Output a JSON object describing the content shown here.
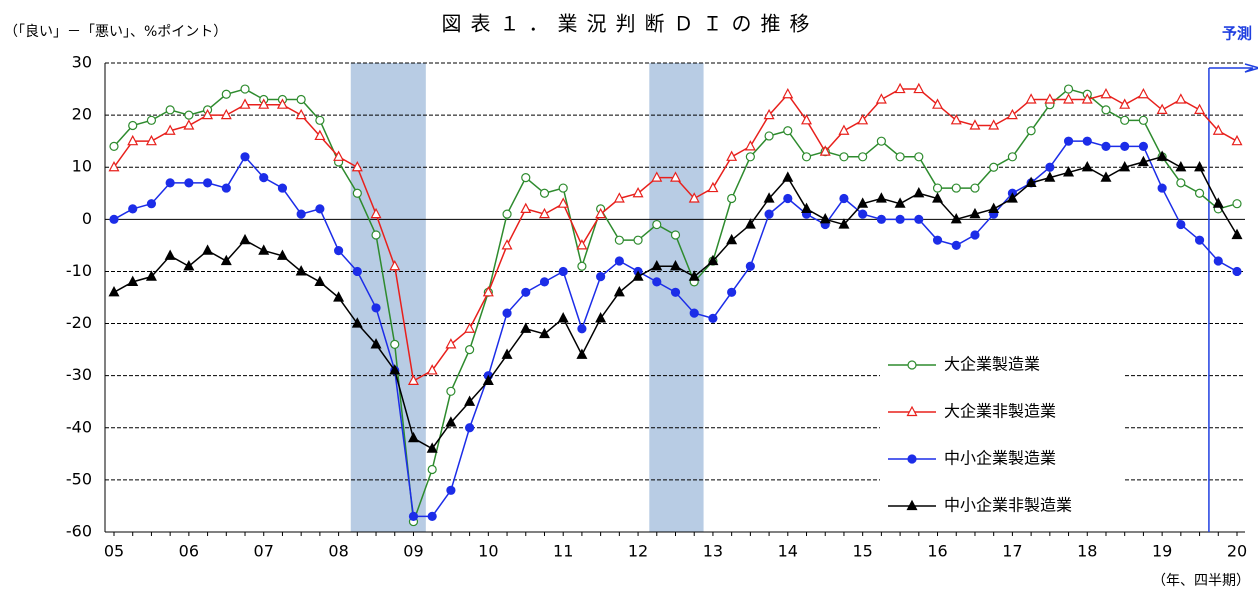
{
  "chart_data": {
    "type": "line",
    "title": "図表１．業況判断ＤＩの推移",
    "y_label": "（「良い」－「悪い」、%ポイント）",
    "x_label": "（年、四半期）",
    "categories": [
      "05",
      null,
      null,
      null,
      "06",
      null,
      null,
      null,
      "07",
      null,
      null,
      null,
      "08",
      null,
      null,
      null,
      "09",
      null,
      null,
      null,
      "10",
      null,
      null,
      null,
      "11",
      null,
      null,
      null,
      "12",
      null,
      null,
      null,
      "13",
      null,
      null,
      null,
      "14",
      null,
      null,
      null,
      "15",
      null,
      null,
      null,
      "16",
      null,
      null,
      null,
      "17",
      null,
      null,
      null,
      "18",
      null,
      null,
      null,
      "19",
      null,
      null,
      null,
      "20"
    ],
    "series": [
      {
        "name": "大企業製造業",
        "color": "#2e8b2e",
        "marker": "circle-open",
        "values": [
          14,
          18,
          19,
          21,
          20,
          21,
          24,
          25,
          23,
          23,
          23,
          19,
          11,
          5,
          -3,
          -24,
          -58,
          -48,
          -33,
          -25,
          -14,
          1,
          8,
          5,
          6,
          -9,
          2,
          -4,
          -4,
          -1,
          -3,
          -12,
          -8,
          4,
          12,
          16,
          17,
          12,
          13,
          12,
          12,
          15,
          12,
          12,
          6,
          6,
          6,
          10,
          12,
          17,
          22,
          25,
          24,
          21,
          19,
          19,
          12,
          7,
          5,
          2,
          3
        ]
      },
      {
        "name": "大企業非製造業",
        "color": "#e8201c",
        "marker": "triangle-open",
        "values": [
          10,
          15,
          15,
          17,
          18,
          20,
          20,
          22,
          22,
          22,
          20,
          16,
          12,
          10,
          1,
          -9,
          -31,
          -29,
          -24,
          -21,
          -14,
          -5,
          2,
          1,
          3,
          -5,
          1,
          4,
          5,
          8,
          8,
          4,
          6,
          12,
          14,
          20,
          24,
          19,
          13,
          17,
          19,
          23,
          25,
          25,
          22,
          19,
          18,
          18,
          20,
          23,
          23,
          23,
          23,
          24,
          22,
          24,
          21,
          23,
          21,
          17,
          15
        ]
      },
      {
        "name": "中小企業製造業",
        "color": "#1c2de8",
        "marker": "circle-filled",
        "values": [
          0,
          2,
          3,
          7,
          7,
          7,
          6,
          12,
          8,
          6,
          1,
          2,
          -6,
          -10,
          -17,
          -29,
          -57,
          -57,
          -52,
          -40,
          -30,
          -18,
          -14,
          -12,
          -10,
          -21,
          -11,
          -8,
          -10,
          -12,
          -14,
          -18,
          -19,
          -14,
          -9,
          1,
          4,
          1,
          -1,
          4,
          1,
          0,
          0,
          0,
          -4,
          -5,
          -3,
          1,
          5,
          7,
          10,
          15,
          15,
          14,
          14,
          14,
          6,
          -1,
          -4,
          -8,
          -10
        ]
      },
      {
        "name": "中小企業非製造業",
        "color": "#000000",
        "marker": "triangle-filled",
        "values": [
          -14,
          -12,
          -11,
          -7,
          -9,
          -6,
          -8,
          -4,
          -6,
          -7,
          -10,
          -12,
          -15,
          -20,
          -24,
          -29,
          -42,
          -44,
          -39,
          -35,
          -31,
          -26,
          -21,
          -22,
          -19,
          -26,
          -19,
          -14,
          -11,
          -9,
          -9,
          -11,
          -8,
          -4,
          -1,
          4,
          8,
          2,
          0,
          -1,
          3,
          4,
          3,
          5,
          4,
          0,
          1,
          2,
          4,
          7,
          8,
          9,
          10,
          8,
          10,
          11,
          12,
          10,
          10,
          3,
          -3
        ]
      }
    ],
    "ylim": [
      -60,
      30
    ],
    "yticks": [
      -60,
      -50,
      -40,
      -30,
      -20,
      -10,
      0,
      10,
      20,
      30
    ],
    "grid": true,
    "shaded_periods": [
      {
        "start": 12.65,
        "end": 16.66
      },
      {
        "start": 28.6,
        "end": 31.5
      }
    ],
    "forecast": {
      "label": "予測",
      "start": 58.5
    },
    "legend": "lower-right"
  }
}
